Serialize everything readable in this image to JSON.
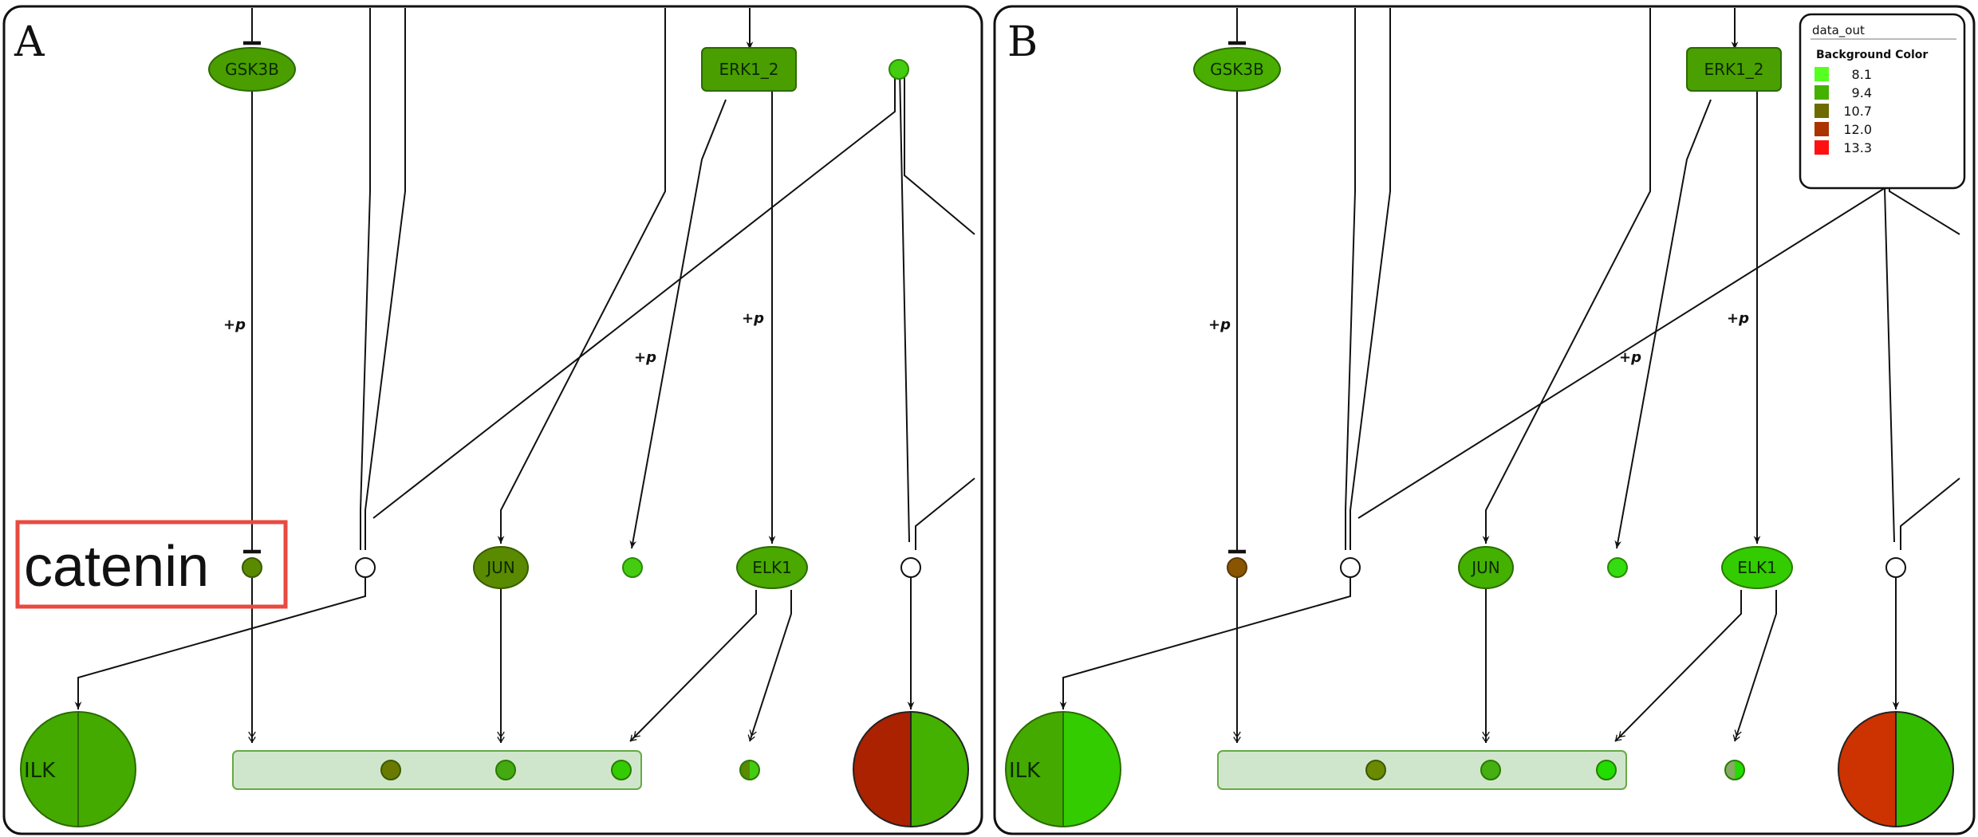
{
  "panels": [
    {
      "id": "A",
      "tag": "A",
      "gene_labels": {
        "gsk3b": "GSK3B",
        "erk": "ERK1_2",
        "jun": "JUN",
        "elk1": "ELK1",
        "ilk": "ILK"
      },
      "edge_labels": {
        "p1": "+p",
        "p2": "+p",
        "p3": "+p"
      },
      "colors": {
        "gsk3b": "#4a9e00",
        "erk": "#4a9e00",
        "jun": "#5a8a00",
        "elk1": "#4aa800",
        "catenin_dot": "#5a8a00",
        "small_dot": "#44cc11",
        "complex_dot1": "#6a7a00",
        "complex_dot2": "#44aa11",
        "complex_dot3": "#33cc00",
        "ilk_left": "#44aa00",
        "ilk_right": "#44aa00",
        "pie_left": "#aa2200",
        "pie_right": "#44b000"
      },
      "callout": "catenin"
    },
    {
      "id": "B",
      "tag": "B",
      "gene_labels": {
        "gsk3b": "GSK3B",
        "erk": "ERK1_2",
        "jun": "JUN",
        "elk1": "ELK1",
        "ilk": "ILK"
      },
      "edge_labels": {
        "p1": "+p",
        "p2": "+p",
        "p3": "+p"
      },
      "colors": {
        "gsk3b": "#4aae00",
        "erk": "#4aa000",
        "jun": "#44b000",
        "elk1": "#33cc00",
        "catenin_dot": "#8a5500",
        "small_dot": "#33dd11",
        "complex_dot1": "#6a8a00",
        "complex_dot2": "#44b011",
        "complex_dot3": "#22dd00",
        "ilk_left": "#44aa00",
        "ilk_right": "#33cc00",
        "pie_left": "#cc3300",
        "pie_right": "#33bb00"
      },
      "legend": {
        "title": "data_out",
        "subtitle": "Background Color",
        "items": [
          {
            "value": "8.1",
            "color": "#55ff22"
          },
          {
            "value": "9.4",
            "color": "#44b000"
          },
          {
            "value": "10.7",
            "color": "#6b6b00"
          },
          {
            "value": "12.0",
            "color": "#aa3300"
          },
          {
            "value": "13.3",
            "color": "#ff1111"
          }
        ]
      }
    }
  ]
}
